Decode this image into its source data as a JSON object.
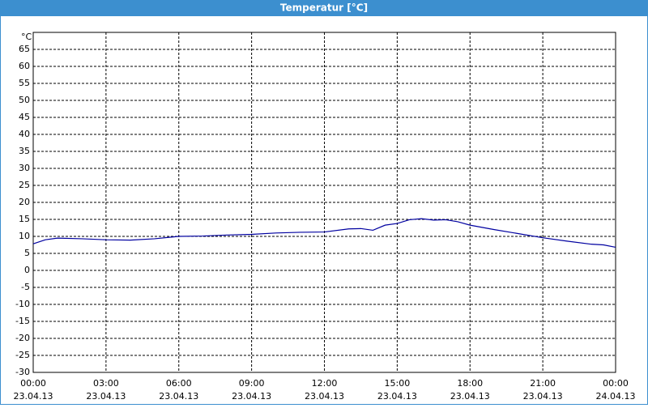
{
  "chart_data": {
    "type": "line",
    "title": "Temperatur [°C]",
    "y_label": "°C",
    "x": [
      0,
      0.5,
      1,
      2,
      3,
      4,
      5,
      6,
      7,
      8,
      9,
      10,
      11,
      12,
      13,
      13.5,
      14,
      14.5,
      15,
      15.5,
      16,
      16.5,
      17,
      17.5,
      18,
      19,
      20,
      21,
      22,
      23,
      23.5,
      24
    ],
    "series": [
      {
        "name": "Temperatur",
        "color": "#0000a0",
        "values": [
          7.8,
          9.0,
          9.5,
          9.3,
          9.0,
          8.9,
          9.3,
          10.0,
          10.1,
          10.4,
          10.6,
          11.0,
          11.2,
          11.3,
          12.2,
          12.3,
          11.8,
          13.3,
          13.8,
          14.9,
          15.2,
          14.8,
          14.9,
          14.3,
          13.3,
          12.0,
          10.8,
          9.6,
          8.6,
          7.7,
          7.5,
          6.8
        ]
      }
    ],
    "xlim": [
      0,
      24
    ],
    "xticks": [
      {
        "value": 0,
        "label": "00:00"
      },
      {
        "value": 3,
        "label": "03:00"
      },
      {
        "value": 6,
        "label": "06:00"
      },
      {
        "value": 9,
        "label": "09:00"
      },
      {
        "value": 12,
        "label": "12:00"
      },
      {
        "value": 15,
        "label": "15:00"
      },
      {
        "value": 18,
        "label": "18:00"
      },
      {
        "value": 21,
        "label": "21:00"
      },
      {
        "value": 24,
        "label": "00:00"
      }
    ],
    "xtick_dates": [
      "23.04.13",
      "23.04.13",
      "23.04.13",
      "23.04.13",
      "23.04.13",
      "23.04.13",
      "23.04.13",
      "23.04.13",
      "24.04.13"
    ],
    "ylim": [
      -30,
      70
    ],
    "yticks": [
      -30,
      -25,
      -20,
      -15,
      -10,
      -5,
      0,
      5,
      10,
      15,
      20,
      25,
      30,
      35,
      40,
      45,
      50,
      55,
      60,
      65
    ],
    "grid": true
  }
}
